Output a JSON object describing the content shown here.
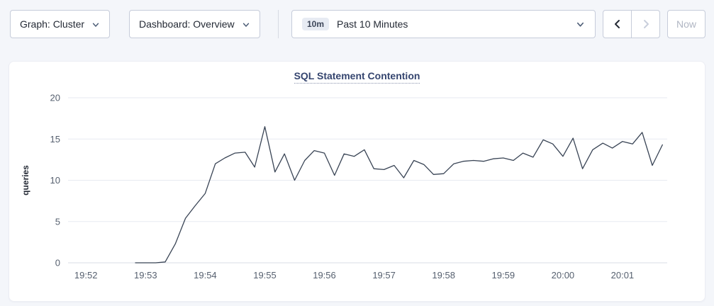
{
  "toolbar": {
    "graph_dropdown": {
      "label": "Graph: Cluster",
      "icon": "chevron-down"
    },
    "dashboard_dropdown": {
      "label": "Dashboard: Overview",
      "icon": "chevron-down"
    },
    "time_range": {
      "badge": "10m",
      "label": "Past 10 Minutes",
      "icon": "chevron-down"
    },
    "nav": {
      "prev_icon": "chevron-left",
      "prev_enabled": true,
      "next_icon": "chevron-right",
      "next_enabled": false
    },
    "now_button": {
      "label": "Now",
      "enabled": false
    }
  },
  "chart_data": {
    "type": "line",
    "title": "SQL Statement Contention",
    "xlabel": "",
    "ylabel": "queries",
    "ylim": [
      0,
      20
    ],
    "yticks": [
      0,
      5,
      10,
      15,
      20
    ],
    "xlim": [
      -0.3,
      9.75
    ],
    "x_unit": "minutes after 19:52",
    "xtick_values": [
      0,
      1,
      2,
      3,
      4,
      5,
      6,
      7,
      8,
      9
    ],
    "xtick_labels": [
      "19:52",
      "19:53",
      "19:54",
      "19:55",
      "19:56",
      "19:57",
      "19:58",
      "19:59",
      "20:00",
      "20:01"
    ],
    "grid": "horizontal",
    "legend_position": "none",
    "series": [
      {
        "name": "queries",
        "color": "#394455",
        "x": [
          0.83,
          1.0,
          1.17,
          1.33,
          1.5,
          1.67,
          1.83,
          2.0,
          2.17,
          2.33,
          2.5,
          2.67,
          2.83,
          3.0,
          3.17,
          3.33,
          3.5,
          3.67,
          3.83,
          4.0,
          4.17,
          4.33,
          4.5,
          4.67,
          4.83,
          5.0,
          5.17,
          5.33,
          5.5,
          5.67,
          5.83,
          6.0,
          6.17,
          6.33,
          6.5,
          6.67,
          6.83,
          7.0,
          7.17,
          7.33,
          7.5,
          7.67,
          7.83,
          8.0,
          8.17,
          8.33,
          8.5,
          8.67,
          8.83,
          9.0,
          9.17,
          9.33,
          9.5,
          9.67
        ],
        "y": [
          0,
          0,
          0,
          0.1,
          2.3,
          5.4,
          6.9,
          8.4,
          12,
          12.7,
          13.3,
          13.4,
          11.6,
          16.5,
          11,
          13.2,
          10,
          12.4,
          13.6,
          13.3,
          10.6,
          13.2,
          12.9,
          13.7,
          11.4,
          11.3,
          11.8,
          10.3,
          12.4,
          11.9,
          10.7,
          10.8,
          12,
          12.3,
          12.4,
          12.3,
          12.6,
          12.7,
          12.4,
          13.3,
          12.8,
          14.9,
          14.4,
          12.9,
          15.1,
          11.4,
          13.7,
          14.5,
          13.9,
          14.7,
          14.4,
          15.8,
          11.8,
          14.3
        ]
      }
    ]
  },
  "colors": {
    "page_bg": "#f4f6fa",
    "card_bg": "#ffffff",
    "control_border": "#c6ccda",
    "title": "#35456f",
    "tick": "#56606f",
    "grid": "#e7eaf1",
    "grid_zero": "#d9dde6",
    "line": "#394455",
    "disabled": "#b0b6c3",
    "badge_bg": "#e7ebf3",
    "badge_text": "#3c4558"
  }
}
